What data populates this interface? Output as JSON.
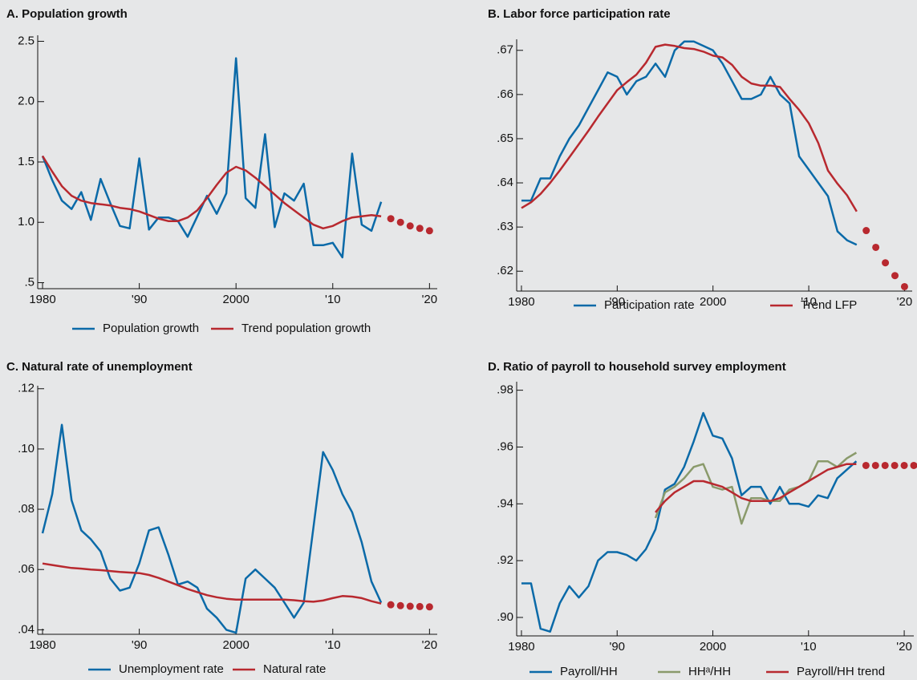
{
  "chart_data": [
    {
      "type": "line",
      "title": "A. Population growth",
      "legend": "bottom",
      "xlim": [
        1979.5,
        2020.8
      ],
      "xticks": [
        1980,
        {
          "value": 1990,
          "label": "'90"
        },
        2000,
        {
          "value": 2010,
          "label": "'10"
        },
        {
          "value": 2020,
          "label": "'20"
        }
      ],
      "ylim": [
        0.45,
        2.55
      ],
      "yticks": [
        {
          "value": 0.5,
          "label": ".5"
        },
        {
          "value": 1,
          "label": "1.0"
        },
        1.5,
        {
          "value": 2,
          "label": "2.0"
        },
        2.5
      ],
      "series": [
        {
          "name": "Population growth",
          "color": "#0b6aa8",
          "style": "line",
          "x": [
            1980,
            1981,
            1982,
            1983,
            1984,
            1985,
            1986,
            1987,
            1988,
            1989,
            1990,
            1991,
            1992,
            1993,
            1994,
            1995,
            1996,
            1997,
            1998,
            1999,
            2000,
            2001,
            2002,
            2003,
            2004,
            2005,
            2006,
            2007,
            2008,
            2009,
            2010,
            2011,
            2012,
            2013,
            2014,
            2015
          ],
          "values": [
            1.55,
            1.35,
            1.18,
            1.11,
            1.25,
            1.02,
            1.36,
            1.16,
            0.97,
            0.95,
            1.53,
            0.94,
            1.04,
            1.04,
            1.01,
            0.88,
            1.05,
            1.22,
            1.07,
            1.24,
            2.36,
            1.2,
            1.12,
            1.73,
            0.96,
            1.24,
            1.18,
            1.32,
            0.81,
            0.81,
            0.83,
            0.71,
            1.57,
            0.98,
            0.93,
            1.17
          ]
        },
        {
          "name": "Trend population growth",
          "color": "#b8292f",
          "style": "line",
          "x": [
            1980,
            1981,
            1982,
            1983,
            1984,
            1985,
            1986,
            1987,
            1988,
            1989,
            1990,
            1991,
            1992,
            1993,
            1994,
            1995,
            1996,
            1997,
            1998,
            1999,
            2000,
            2001,
            2002,
            2003,
            2004,
            2005,
            2006,
            2007,
            2008,
            2009,
            2010,
            2011,
            2012,
            2013,
            2014,
            2015
          ],
          "values": [
            1.55,
            1.42,
            1.3,
            1.22,
            1.18,
            1.16,
            1.15,
            1.14,
            1.12,
            1.11,
            1.09,
            1.06,
            1.03,
            1.01,
            1.01,
            1.04,
            1.1,
            1.2,
            1.31,
            1.41,
            1.46,
            1.43,
            1.37,
            1.3,
            1.23,
            1.16,
            1.1,
            1.04,
            0.98,
            0.95,
            0.97,
            1.01,
            1.04,
            1.05,
            1.06,
            1.05
          ]
        },
        {
          "color": "#b8292f",
          "style": "dots",
          "x": [
            2016,
            2017,
            2018,
            2019,
            2020
          ],
          "values": [
            1.03,
            1.0,
            0.97,
            0.95,
            0.93
          ]
        }
      ]
    },
    {
      "type": "line",
      "title": "B. Labor force participation rate",
      "legend": "bottom",
      "xlim": [
        1979.5,
        2020.8
      ],
      "xticks": [
        1980,
        {
          "value": 1990,
          "label": "'90"
        },
        2000,
        {
          "value": 2010,
          "label": "'10"
        },
        {
          "value": 2020,
          "label": "'20"
        }
      ],
      "ylim": [
        0.6155,
        0.6725
      ],
      "yticks": [
        {
          "value": 0.62,
          "label": ".62"
        },
        {
          "value": 0.63,
          "label": ".63"
        },
        {
          "value": 0.64,
          "label": ".64"
        },
        {
          "value": 0.65,
          "label": ".65"
        },
        {
          "value": 0.66,
          "label": ".66"
        },
        {
          "value": 0.67,
          "label": ".67"
        }
      ],
      "series": [
        {
          "name": "Participation rate",
          "color": "#0b6aa8",
          "style": "line",
          "x": [
            1980,
            1981,
            1982,
            1983,
            1984,
            1985,
            1986,
            1987,
            1988,
            1989,
            1990,
            1991,
            1992,
            1993,
            1994,
            1995,
            1996,
            1997,
            1998,
            1999,
            2000,
            2001,
            2002,
            2003,
            2004,
            2005,
            2006,
            2007,
            2008,
            2009,
            2010,
            2011,
            2012,
            2013,
            2014,
            2015
          ],
          "values": [
            0.636,
            0.636,
            0.641,
            0.641,
            0.646,
            0.65,
            0.653,
            0.657,
            0.661,
            0.665,
            0.664,
            0.66,
            0.663,
            0.664,
            0.667,
            0.664,
            0.67,
            0.672,
            0.672,
            0.671,
            0.67,
            0.667,
            0.663,
            0.659,
            0.659,
            0.66,
            0.664,
            0.66,
            0.658,
            0.646,
            0.643,
            0.64,
            0.637,
            0.629,
            0.627,
            0.626
          ]
        },
        {
          "name": "Trend LFP",
          "color": "#b8292f",
          "style": "line",
          "x": [
            1980,
            1981,
            1982,
            1983,
            1984,
            1985,
            1986,
            1987,
            1988,
            1989,
            1990,
            1991,
            1992,
            1993,
            1994,
            1995,
            1996,
            1997,
            1998,
            1999,
            2000,
            2001,
            2002,
            2003,
            2004,
            2005,
            2006,
            2007,
            2008,
            2009,
            2010,
            2011,
            2012,
            2013,
            2014,
            2015
          ],
          "values": [
            0.6343,
            0.6356,
            0.6375,
            0.64,
            0.6428,
            0.6458,
            0.6488,
            0.6518,
            0.655,
            0.658,
            0.661,
            0.6628,
            0.6645,
            0.6672,
            0.6708,
            0.6713,
            0.671,
            0.6705,
            0.6703,
            0.6697,
            0.6688,
            0.6684,
            0.6667,
            0.664,
            0.6625,
            0.662,
            0.662,
            0.6617,
            0.659,
            0.6565,
            0.6535,
            0.649,
            0.6428,
            0.6398,
            0.6372,
            0.6335
          ]
        },
        {
          "color": "#b8292f",
          "style": "dots",
          "x": [
            2016,
            2017,
            2018,
            2019,
            2020
          ],
          "values": [
            0.6292,
            0.6254,
            0.6219,
            0.619,
            0.6165
          ]
        }
      ]
    },
    {
      "type": "line",
      "title": "C. Natural rate of unemployment",
      "legend": "bottom",
      "xlim": [
        1979.5,
        2020.8
      ],
      "xticks": [
        1980,
        {
          "value": 1990,
          "label": "'90"
        },
        2000,
        {
          "value": 2010,
          "label": "'10"
        },
        {
          "value": 2020,
          "label": "'20"
        }
      ],
      "ylim": [
        0.0385,
        0.121
      ],
      "yticks": [
        {
          "value": 0.04,
          "label": ".04"
        },
        {
          "value": 0.06,
          "label": ".06"
        },
        {
          "value": 0.08,
          "label": ".08"
        },
        {
          "value": 0.1,
          "label": ".10"
        },
        {
          "value": 0.12,
          "label": ".12"
        }
      ],
      "series": [
        {
          "name": "Unemployment rate",
          "color": "#0b6aa8",
          "style": "line",
          "x": [
            1980,
            1981,
            1982,
            1983,
            1984,
            1985,
            1986,
            1987,
            1988,
            1989,
            1990,
            1991,
            1992,
            1993,
            1994,
            1995,
            1996,
            1997,
            1998,
            1999,
            2000,
            2001,
            2002,
            2003,
            2004,
            2005,
            2006,
            2007,
            2008,
            2009,
            2010,
            2011,
            2012,
            2013,
            2014,
            2015
          ],
          "values": [
            0.072,
            0.085,
            0.108,
            0.083,
            0.073,
            0.07,
            0.066,
            0.057,
            0.053,
            0.054,
            0.062,
            0.073,
            0.074,
            0.065,
            0.055,
            0.056,
            0.054,
            0.047,
            0.044,
            0.04,
            0.039,
            0.057,
            0.06,
            0.057,
            0.054,
            0.049,
            0.044,
            0.049,
            0.074,
            0.099,
            0.093,
            0.085,
            0.079,
            0.069,
            0.056,
            0.049
          ]
        },
        {
          "name": "Natural rate",
          "color": "#b8292f",
          "style": "line",
          "x": [
            1980,
            1981,
            1982,
            1983,
            1984,
            1985,
            1986,
            1987,
            1988,
            1989,
            1990,
            1991,
            1992,
            1993,
            1994,
            1995,
            1996,
            1997,
            1998,
            1999,
            2000,
            2001,
            2002,
            2003,
            2004,
            2005,
            2006,
            2007,
            2008,
            2009,
            2010,
            2011,
            2012,
            2013,
            2014,
            2015
          ],
          "values": [
            0.062,
            0.0615,
            0.061,
            0.0605,
            0.0603,
            0.06,
            0.0598,
            0.0595,
            0.0592,
            0.059,
            0.0588,
            0.0582,
            0.0572,
            0.056,
            0.0548,
            0.0535,
            0.0525,
            0.0515,
            0.0508,
            0.0503,
            0.05,
            0.05,
            0.05,
            0.05,
            0.05,
            0.05,
            0.0498,
            0.0495,
            0.0493,
            0.0497,
            0.0505,
            0.0512,
            0.051,
            0.0505,
            0.0495,
            0.0487
          ]
        },
        {
          "color": "#b8292f",
          "style": "dots",
          "x": [
            2016,
            2017,
            2018,
            2019,
            2020
          ],
          "values": [
            0.0483,
            0.048,
            0.0478,
            0.0477,
            0.0476
          ]
        }
      ]
    },
    {
      "type": "line",
      "title": "D. Ratio of payroll to household survey employment",
      "legend": "bottom",
      "xlim": [
        1979.5,
        2021
      ],
      "xticks": [
        1980,
        {
          "value": 1990,
          "label": "'90"
        },
        2000,
        {
          "value": 2010,
          "label": "'10"
        },
        {
          "value": 2020,
          "label": "'20"
        }
      ],
      "ylim": [
        0.8935,
        0.983
      ],
      "yticks": [
        {
          "value": 0.9,
          "label": ".90"
        },
        {
          "value": 0.92,
          "label": ".92"
        },
        {
          "value": 0.94,
          "label": ".94"
        },
        {
          "value": 0.96,
          "label": ".96"
        },
        {
          "value": 0.98,
          "label": ".98"
        }
      ],
      "series": [
        {
          "name": "Payroll/HH",
          "color": "#0b6aa8",
          "style": "line",
          "x": [
            1980,
            1981,
            1982,
            1983,
            1984,
            1985,
            1986,
            1987,
            1988,
            1989,
            1990,
            1991,
            1992,
            1993,
            1994,
            1995,
            1996,
            1997,
            1998,
            1999,
            2000,
            2001,
            2002,
            2003,
            2004,
            2005,
            2006,
            2007,
            2008,
            2009,
            2010,
            2011,
            2012,
            2013,
            2014,
            2015
          ],
          "values": [
            0.912,
            0.912,
            0.896,
            0.895,
            0.905,
            0.911,
            0.907,
            0.911,
            0.92,
            0.923,
            0.923,
            0.922,
            0.92,
            0.924,
            0.931,
            0.945,
            0.947,
            0.953,
            0.962,
            0.972,
            0.964,
            0.963,
            0.956,
            0.943,
            0.946,
            0.946,
            0.94,
            0.946,
            0.94,
            0.94,
            0.939,
            0.943,
            0.942,
            0.949,
            0.952,
            0.955
          ]
        },
        {
          "name": "HHᵃ/HH",
          "color": "#8a9a6b",
          "style": "line",
          "x": [
            1994,
            1995,
            1996,
            1997,
            1998,
            1999,
            2000,
            2001,
            2002,
            2003,
            2004,
            2005,
            2006,
            2007,
            2008,
            2009,
            2010,
            2011,
            2012,
            2013,
            2014,
            2015
          ],
          "values": [
            0.935,
            0.944,
            0.946,
            0.949,
            0.953,
            0.954,
            0.946,
            0.945,
            0.946,
            0.933,
            0.942,
            0.942,
            0.941,
            0.941,
            0.945,
            0.946,
            0.948,
            0.955,
            0.955,
            0.953,
            0.956,
            0.958
          ]
        },
        {
          "name": "Payroll/HH trend",
          "color": "#b8292f",
          "style": "line",
          "x": [
            1994,
            1995,
            1996,
            1997,
            1998,
            1999,
            2000,
            2001,
            2002,
            2003,
            2004,
            2005,
            2006,
            2007,
            2008,
            2009,
            2010,
            2011,
            2012,
            2013,
            2014,
            2015
          ],
          "values": [
            0.937,
            0.941,
            0.944,
            0.946,
            0.948,
            0.948,
            0.947,
            0.946,
            0.944,
            0.942,
            0.941,
            0.941,
            0.941,
            0.942,
            0.944,
            0.946,
            0.948,
            0.95,
            0.952,
            0.953,
            0.954,
            0.954
          ]
        },
        {
          "color": "#b8292f",
          "style": "dots",
          "x": [
            2016,
            2017,
            2018,
            2019,
            2020,
            2021
          ],
          "values": [
            0.9535,
            0.9535,
            0.9535,
            0.9535,
            0.9535,
            0.9535
          ]
        }
      ]
    }
  ]
}
